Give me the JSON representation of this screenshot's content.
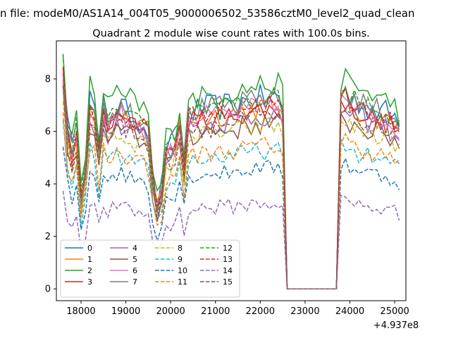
{
  "suptitle": "n file: modeM0/AS1A14_004T05_9000006502_53586cztM0_level2_quad_clean",
  "chart_data": {
    "type": "line",
    "title": "Quadrant 2 module wise count rates with 100.0s bins.",
    "xlabel": "",
    "ylabel": "",
    "offset_label": "+4.937e8",
    "xlim": [
      17450,
      25250
    ],
    "ylim": [
      -0.45,
      9.45
    ],
    "xticks": [
      18000,
      19000,
      20000,
      21000,
      22000,
      23000,
      24000,
      25000
    ],
    "xtick_labels": [
      "18000",
      "19000",
      "20000",
      "21000",
      "22000",
      "23000",
      "24000",
      "25000"
    ],
    "yticks": [
      0,
      2,
      4,
      6,
      8
    ],
    "ytick_labels": [
      "0",
      "2",
      "4",
      "6",
      "8"
    ],
    "grid": false,
    "legend_position": "lower-left",
    "legend_columns": 4,
    "x_start": 17600,
    "bin_width": 100,
    "series": [
      {
        "name": "0",
        "style": "solid",
        "level": 6.9,
        "variability": 0.55
      },
      {
        "name": "1",
        "style": "solid",
        "level": 6.6,
        "variability": 0.45
      },
      {
        "name": "2",
        "style": "solid",
        "level": 7.4,
        "variability": 0.45
      },
      {
        "name": "3",
        "style": "solid",
        "level": 6.5,
        "variability": 0.4
      },
      {
        "name": "4",
        "style": "solid",
        "level": 6.3,
        "variability": 0.45
      },
      {
        "name": "5",
        "style": "solid",
        "level": 6.0,
        "variability": 0.45
      },
      {
        "name": "6",
        "style": "solid",
        "level": 6.6,
        "variability": 0.45
      },
      {
        "name": "7",
        "style": "solid",
        "level": 6.9,
        "variability": 0.45
      },
      {
        "name": "8",
        "style": "dashed",
        "level": 5.9,
        "variability": 0.4
      },
      {
        "name": "9",
        "style": "dashed",
        "level": 5.0,
        "variability": 0.35
      },
      {
        "name": "10",
        "style": "dashed",
        "level": 4.4,
        "variability": 0.3
      },
      {
        "name": "11",
        "style": "dashed",
        "level": 5.2,
        "variability": 0.35
      },
      {
        "name": "12",
        "style": "dashed",
        "level": 6.9,
        "variability": 0.4
      },
      {
        "name": "13",
        "style": "dashed",
        "level": 6.7,
        "variability": 0.4
      },
      {
        "name": "14",
        "style": "dashed",
        "level": 3.1,
        "variability": 0.3
      },
      {
        "name": "15",
        "style": "dashed",
        "level": 6.2,
        "variability": 0.4
      }
    ],
    "profile": [
      [
        17600,
        1.25
      ],
      [
        17700,
        0.9
      ],
      [
        17800,
        0.75
      ],
      [
        17900,
        0.9
      ],
      [
        18000,
        0.5
      ],
      [
        18100,
        0.7
      ],
      [
        18200,
        1.05
      ],
      [
        18300,
        1.0
      ],
      [
        18400,
        0.75
      ],
      [
        18500,
        1.03
      ],
      [
        18600,
        0.95
      ],
      [
        18700,
        0.98
      ],
      [
        18800,
        1.0
      ],
      [
        18900,
        1.0
      ],
      [
        19000,
        0.97
      ],
      [
        19100,
        0.98
      ],
      [
        19200,
        0.95
      ],
      [
        19300,
        0.95
      ],
      [
        19400,
        0.93
      ],
      [
        19500,
        0.88
      ],
      [
        19600,
        0.6
      ],
      [
        19700,
        0.48
      ],
      [
        19800,
        0.55
      ],
      [
        19900,
        0.8
      ],
      [
        20000,
        0.78
      ],
      [
        20100,
        0.82
      ],
      [
        20200,
        0.95
      ],
      [
        20300,
        0.7
      ],
      [
        20400,
        1.0
      ],
      [
        20500,
        0.98
      ],
      [
        21000,
        1.0
      ],
      [
        21500,
        1.02
      ],
      [
        22000,
        1.05
      ],
      [
        22400,
        1.05
      ],
      [
        22500,
        1.0
      ],
      [
        22600,
        0
      ],
      [
        23700,
        0
      ],
      [
        23800,
        1.08
      ],
      [
        23900,
        1.1
      ],
      [
        24000,
        1.05
      ],
      [
        24500,
        1.0
      ],
      [
        25000,
        0.95
      ],
      [
        25100,
        0.9
      ]
    ],
    "colors": [
      "#1f77b4",
      "#ff7f0e",
      "#2ca02c",
      "#d62728",
      "#9467bd",
      "#8c564b",
      "#e377c2",
      "#7f7f7f",
      "#bcbd22",
      "#17becf",
      "#1f77b4",
      "#ff7f0e",
      "#2ca02c",
      "#d62728",
      "#9467bd",
      "#8c564b"
    ]
  }
}
